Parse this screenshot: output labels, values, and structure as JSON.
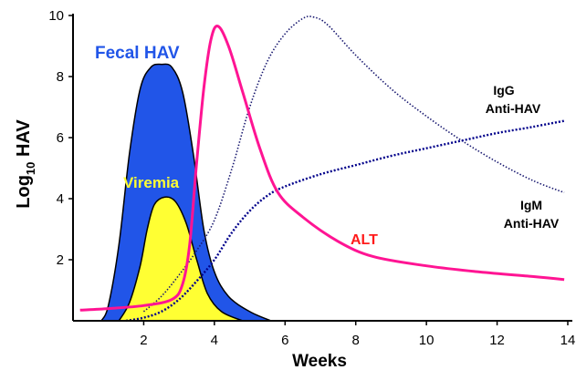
{
  "chart_data": {
    "type": "line",
    "xlabel": "Weeks",
    "ylabel": {
      "base": "Log",
      "sub": "10",
      "rest": " HAV"
    },
    "xlim": [
      0,
      14
    ],
    "ylim": [
      0,
      10
    ],
    "x_ticks": [
      "2",
      "4",
      "6",
      "8",
      "10",
      "12",
      "14"
    ],
    "y_ticks": [
      "2",
      "4",
      "6",
      "8",
      "10"
    ],
    "series": [
      {
        "name": "Fecal HAV",
        "style": "filled-area",
        "color": "#2155e8",
        "points": [
          [
            0.8,
            0
          ],
          [
            1.0,
            0.5
          ],
          [
            1.3,
            2.5
          ],
          [
            1.6,
            5.5
          ],
          [
            1.9,
            7.6
          ],
          [
            2.2,
            8.3
          ],
          [
            2.5,
            8.4
          ],
          [
            2.8,
            8.3
          ],
          [
            3.1,
            7.5
          ],
          [
            3.4,
            5.5
          ],
          [
            3.7,
            3.0
          ],
          [
            4.0,
            1.6
          ],
          [
            4.4,
            0.8
          ],
          [
            5.0,
            0.3
          ],
          [
            5.6,
            0
          ]
        ]
      },
      {
        "name": "Viremia",
        "style": "filled-area",
        "color": "#ffff33",
        "points": [
          [
            1.3,
            0
          ],
          [
            1.6,
            0.6
          ],
          [
            1.9,
            1.8
          ],
          [
            2.1,
            3.0
          ],
          [
            2.3,
            3.8
          ],
          [
            2.6,
            4.05
          ],
          [
            2.9,
            3.9
          ],
          [
            3.2,
            3.2
          ],
          [
            3.5,
            2.0
          ],
          [
            3.8,
            0.9
          ],
          [
            4.2,
            0.3
          ],
          [
            4.8,
            0
          ]
        ]
      },
      {
        "name": "ALT",
        "style": "solid",
        "color": "#ff1493",
        "points": [
          [
            0.2,
            0.35
          ],
          [
            1.0,
            0.4
          ],
          [
            2.0,
            0.5
          ],
          [
            2.8,
            0.7
          ],
          [
            3.1,
            1.2
          ],
          [
            3.3,
            2.5
          ],
          [
            3.5,
            5.2
          ],
          [
            3.7,
            7.6
          ],
          [
            3.9,
            9.2
          ],
          [
            4.1,
            9.65
          ],
          [
            4.4,
            9.0
          ],
          [
            4.8,
            7.5
          ],
          [
            5.3,
            5.6
          ],
          [
            5.8,
            4.2
          ],
          [
            6.5,
            3.4
          ],
          [
            7.5,
            2.6
          ],
          [
            8.5,
            2.1
          ],
          [
            10.0,
            1.8
          ],
          [
            11.5,
            1.6
          ],
          [
            13.0,
            1.45
          ],
          [
            13.9,
            1.35
          ]
        ]
      },
      {
        "name": "IgM Anti-HAV",
        "style": "dotted",
        "color": "#191970",
        "points": [
          [
            2.0,
            0.3
          ],
          [
            2.5,
            0.8
          ],
          [
            3.0,
            1.5
          ],
          [
            3.5,
            2.3
          ],
          [
            4.0,
            3.3
          ],
          [
            4.5,
            5.0
          ],
          [
            5.0,
            7.0
          ],
          [
            5.5,
            8.5
          ],
          [
            6.0,
            9.4
          ],
          [
            6.5,
            9.9
          ],
          [
            6.8,
            9.95
          ],
          [
            7.2,
            9.7
          ],
          [
            8.0,
            8.7
          ],
          [
            9.0,
            7.6
          ],
          [
            10.0,
            6.7
          ],
          [
            11.0,
            5.9
          ],
          [
            12.0,
            5.2
          ],
          [
            13.0,
            4.6
          ],
          [
            13.9,
            4.2
          ]
        ]
      },
      {
        "name": "IgG Anti-HAV",
        "style": "dotted",
        "color": "#00008b",
        "points": [
          [
            1.5,
            0
          ],
          [
            2.0,
            0.1
          ],
          [
            2.5,
            0.3
          ],
          [
            3.0,
            0.7
          ],
          [
            3.5,
            1.3
          ],
          [
            4.0,
            2.0
          ],
          [
            4.5,
            2.9
          ],
          [
            5.0,
            3.6
          ],
          [
            5.5,
            4.1
          ],
          [
            6.0,
            4.4
          ],
          [
            7.0,
            4.8
          ],
          [
            8.0,
            5.1
          ],
          [
            9.0,
            5.4
          ],
          [
            10.0,
            5.65
          ],
          [
            11.0,
            5.9
          ],
          [
            12.0,
            6.15
          ],
          [
            13.0,
            6.35
          ],
          [
            13.9,
            6.55
          ]
        ]
      }
    ],
    "labels": {
      "fecal": "Fecal HAV",
      "viremia": "Viremia",
      "alt": "ALT",
      "igg_line1": "IgG",
      "igg_line2": "Anti-HAV",
      "igm_line1": "IgM",
      "igm_line2": "Anti-HAV"
    },
    "colors": {
      "fecal_label": "#2155e8",
      "viremia_label": "#ffff33",
      "alt_label": "#ff1a1a",
      "axis": "#000000"
    },
    "grid": false,
    "legend": "none"
  }
}
